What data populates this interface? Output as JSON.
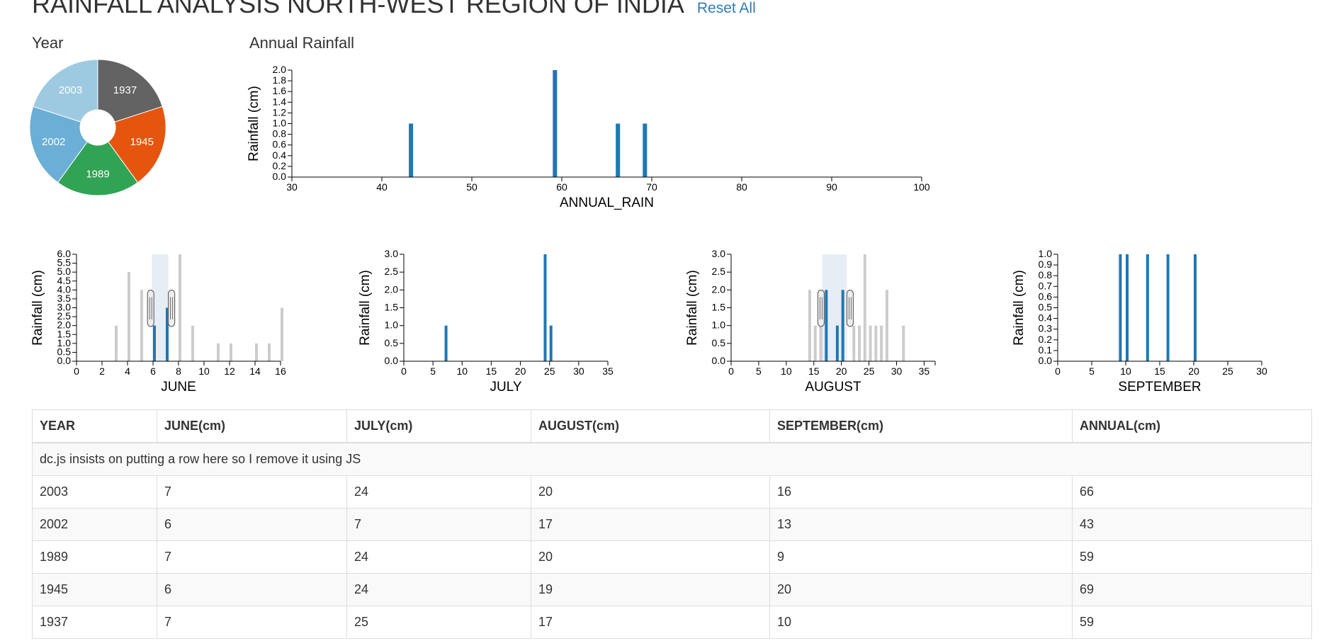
{
  "header": {
    "title": "RAINFALL ANALYSIS NORTH-WEST REGION OF INDIA",
    "reset_label": "Reset All"
  },
  "labels": {
    "year": "Year",
    "annual": "Annual Rainfall"
  },
  "colors": {
    "selected_bar": "#1f77b4",
    "deselected_bar": "#cccccc",
    "link": "#337ab7"
  },
  "chart_data": [
    {
      "id": "year-pie",
      "type": "pie",
      "title": "Year",
      "slices": [
        {
          "label": "1937",
          "value": 1,
          "color": "#636363"
        },
        {
          "label": "1945",
          "value": 1,
          "color": "#e6550d"
        },
        {
          "label": "1989",
          "value": 1,
          "color": "#31a354"
        },
        {
          "label": "2002",
          "value": 1,
          "color": "#6baed6"
        },
        {
          "label": "2003",
          "value": 1,
          "color": "#9ecae1"
        }
      ]
    },
    {
      "id": "annual",
      "type": "bar",
      "title": "Annual Rainfall",
      "xlabel": "ANNUAL_RAIN",
      "ylabel": "Rainfall (cm)",
      "xlim": [
        30,
        100
      ],
      "ylim": [
        0,
        2
      ],
      "xticks": [
        30,
        40,
        50,
        60,
        70,
        80,
        90,
        100
      ],
      "yticks": [
        "0.0",
        "0.2",
        "0.4",
        "0.6",
        "0.8",
        "1.0",
        "1.2",
        "1.4",
        "1.6",
        "1.8",
        "2.0"
      ],
      "bars": [
        {
          "x": 43,
          "y": 1,
          "selected": true
        },
        {
          "x": 59,
          "y": 2,
          "selected": true
        },
        {
          "x": 66,
          "y": 1,
          "selected": true
        },
        {
          "x": 69,
          "y": 1,
          "selected": true
        }
      ]
    },
    {
      "id": "june",
      "type": "bar",
      "xlabel": "JUNE",
      "ylabel": "Rainfall (cm)",
      "xlim": [
        0,
        16
      ],
      "ylim": [
        0,
        6
      ],
      "xticks": [
        0,
        2,
        4,
        6,
        8,
        10,
        12,
        14,
        16
      ],
      "yticks": [
        "0.0",
        "0.5",
        "1.0",
        "1.5",
        "2.0",
        "2.5",
        "3.0",
        "3.5",
        "4.0",
        "4.5",
        "5.0",
        "5.5",
        "6.0"
      ],
      "brush": [
        5.9,
        7.2
      ],
      "bars": [
        {
          "x": 3,
          "y": 2,
          "selected": false
        },
        {
          "x": 4,
          "y": 5,
          "selected": false
        },
        {
          "x": 5,
          "y": 4,
          "selected": false
        },
        {
          "x": 6,
          "y": 2,
          "selected": true
        },
        {
          "x": 7,
          "y": 3,
          "selected": true
        },
        {
          "x": 8,
          "y": 6,
          "selected": false
        },
        {
          "x": 9,
          "y": 2,
          "selected": false
        },
        {
          "x": 11,
          "y": 1,
          "selected": false
        },
        {
          "x": 12,
          "y": 1,
          "selected": false
        },
        {
          "x": 14,
          "y": 1,
          "selected": false
        },
        {
          "x": 15,
          "y": 1,
          "selected": false
        },
        {
          "x": 16,
          "y": 3,
          "selected": false
        }
      ]
    },
    {
      "id": "july",
      "type": "bar",
      "xlabel": "JULY",
      "ylabel": "Rainfall (cm)",
      "xlim": [
        0,
        35
      ],
      "ylim": [
        0,
        3
      ],
      "xticks": [
        0,
        5,
        10,
        15,
        20,
        25,
        30,
        35
      ],
      "yticks": [
        "0.0",
        "0.5",
        "1.0",
        "1.5",
        "2.0",
        "2.5",
        "3.0"
      ],
      "bars": [
        {
          "x": 7,
          "y": 1,
          "selected": true
        },
        {
          "x": 24,
          "y": 3,
          "selected": true
        },
        {
          "x": 25,
          "y": 1,
          "selected": true
        }
      ]
    },
    {
      "id": "august",
      "type": "bar",
      "xlabel": "AUGUST",
      "ylabel": "Rainfall (cm)",
      "xlim": [
        0,
        37
      ],
      "ylim": [
        0,
        3
      ],
      "xticks": [
        0,
        5,
        10,
        15,
        20,
        25,
        30,
        35
      ],
      "yticks": [
        "0.0",
        "0.5",
        "1.0",
        "1.5",
        "2.0",
        "2.5",
        "3.0"
      ],
      "brush": [
        16.5,
        21
      ],
      "bars": [
        {
          "x": 14,
          "y": 2,
          "selected": false
        },
        {
          "x": 15,
          "y": 1,
          "selected": false
        },
        {
          "x": 16,
          "y": 1,
          "selected": false
        },
        {
          "x": 17,
          "y": 2,
          "selected": true
        },
        {
          "x": 19,
          "y": 1,
          "selected": true
        },
        {
          "x": 20,
          "y": 2,
          "selected": true
        },
        {
          "x": 22,
          "y": 1,
          "selected": false
        },
        {
          "x": 23,
          "y": 1,
          "selected": false
        },
        {
          "x": 24,
          "y": 3,
          "selected": false
        },
        {
          "x": 25,
          "y": 1,
          "selected": false
        },
        {
          "x": 26,
          "y": 1,
          "selected": false
        },
        {
          "x": 27,
          "y": 1,
          "selected": false
        },
        {
          "x": 28,
          "y": 2,
          "selected": false
        },
        {
          "x": 31,
          "y": 1,
          "selected": false
        }
      ]
    },
    {
      "id": "september",
      "type": "bar",
      "xlabel": "SEPTEMBER",
      "ylabel": "Rainfall (cm)",
      "xlim": [
        0,
        30
      ],
      "ylim": [
        0,
        1
      ],
      "xticks": [
        0,
        5,
        10,
        15,
        20,
        25,
        30
      ],
      "yticks": [
        "0.0",
        "0.1",
        "0.2",
        "0.3",
        "0.4",
        "0.5",
        "0.6",
        "0.7",
        "0.8",
        "0.9",
        "1.0"
      ],
      "bars": [
        {
          "x": 9,
          "y": 1,
          "selected": true
        },
        {
          "x": 10,
          "y": 1,
          "selected": true
        },
        {
          "x": 13,
          "y": 1,
          "selected": true
        },
        {
          "x": 16,
          "y": 1,
          "selected": true
        },
        {
          "x": 20,
          "y": 1,
          "selected": true
        }
      ]
    }
  ],
  "table": {
    "headers": [
      "YEAR",
      "JUNE(cm)",
      "JULY(cm)",
      "AUGUST(cm)",
      "SEPTEMBER(cm)",
      "ANNUAL(cm)"
    ],
    "note": "dc.js insists on putting a row here so I remove it using JS",
    "rows": [
      [
        "2003",
        "7",
        "24",
        "20",
        "16",
        "66"
      ],
      [
        "2002",
        "6",
        "7",
        "17",
        "13",
        "43"
      ],
      [
        "1989",
        "7",
        "24",
        "20",
        "9",
        "59"
      ],
      [
        "1945",
        "6",
        "24",
        "19",
        "20",
        "69"
      ],
      [
        "1937",
        "7",
        "25",
        "17",
        "10",
        "59"
      ]
    ]
  }
}
